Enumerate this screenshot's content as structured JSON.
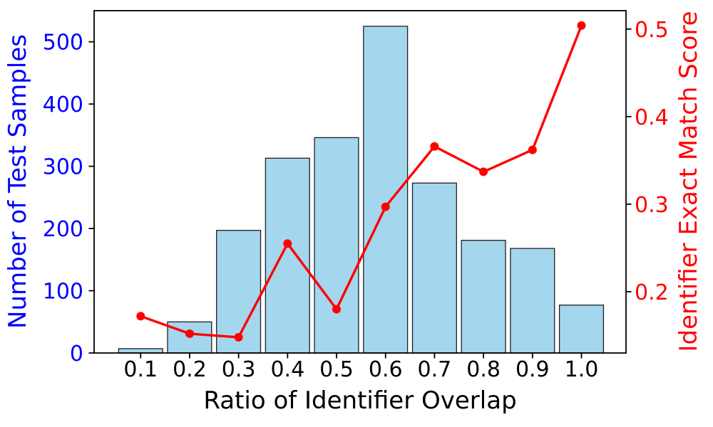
{
  "chart_data": {
    "type": "bar",
    "subtype": "dual-axis bar + line combo",
    "categories": [
      "0.1",
      "0.2",
      "0.3",
      "0.4",
      "0.5",
      "0.6",
      "0.7",
      "0.8",
      "0.9",
      "1.0"
    ],
    "x_values": [
      0.1,
      0.2,
      0.3,
      0.4,
      0.5,
      0.6,
      0.7,
      0.8,
      0.9,
      1.0
    ],
    "series": [
      {
        "name": "Number of Test Samples",
        "type": "bar",
        "axis": "left",
        "values": [
          7,
          50,
          197,
          313,
          346,
          525,
          273,
          181,
          168,
          77
        ],
        "fill": "#a4d7ee",
        "edge": "#1f1f1f",
        "bar_width": 0.09
      },
      {
        "name": "Identifier Exact Match Score",
        "type": "line",
        "axis": "right",
        "values": [
          0.172,
          0.152,
          0.148,
          0.255,
          0.18,
          0.297,
          0.366,
          0.337,
          0.362,
          0.504
        ],
        "color": "#ff0000",
        "marker": "circle"
      }
    ],
    "title": "",
    "xlabel": "Ratio of Identifier Overlap",
    "ylabel_left": "Number of Test Samples",
    "ylabel_right": "Identifier Exact Match Score",
    "axes": {
      "x": {
        "range": [
          0.005,
          1.091
        ],
        "color": "#000000",
        "ticks": [
          {
            "label": "0.1",
            "value": 0.1
          },
          {
            "label": "0.2",
            "value": 0.2
          },
          {
            "label": "0.3",
            "value": 0.3
          },
          {
            "label": "0.4",
            "value": 0.4
          },
          {
            "label": "0.5",
            "value": 0.5
          },
          {
            "label": "0.6",
            "value": 0.6
          },
          {
            "label": "0.7",
            "value": 0.7
          },
          {
            "label": "0.8",
            "value": 0.8
          },
          {
            "label": "0.9",
            "value": 0.9
          },
          {
            "label": "1.0",
            "value": 1.0
          }
        ]
      },
      "left": {
        "range": [
          0,
          550
        ],
        "color": "#0000ff",
        "ticks": [
          {
            "label": "0",
            "value": 0
          },
          {
            "label": "100",
            "value": 100
          },
          {
            "label": "200",
            "value": 200
          },
          {
            "label": "300",
            "value": 300
          },
          {
            "label": "400",
            "value": 400
          },
          {
            "label": "500",
            "value": 500
          }
        ]
      },
      "right": {
        "range": [
          0.13,
          0.521
        ],
        "color": "#ff0000",
        "ticks": [
          {
            "label": "0.2",
            "value": 0.2
          },
          {
            "label": "0.3",
            "value": 0.3
          },
          {
            "label": "0.4",
            "value": 0.4
          },
          {
            "label": "0.5",
            "value": 0.5
          }
        ]
      }
    },
    "grid": false,
    "legend_position": "none",
    "spine_color": "#000000"
  }
}
